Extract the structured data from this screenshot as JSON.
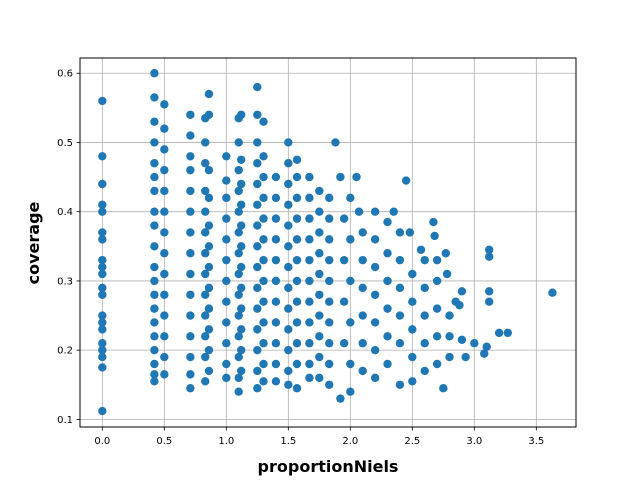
{
  "chart_data": {
    "type": "scatter",
    "xlabel": "proportionNiels",
    "ylabel": "coverage",
    "xlim": [
      -0.18,
      3.82
    ],
    "ylim": [
      0.089,
      0.622
    ],
    "xticks": [
      0.0,
      0.5,
      1.0,
      1.5,
      2.0,
      2.5,
      3.0,
      3.5
    ],
    "xtick_labels": [
      "0.0",
      "0.5",
      "1.0",
      "1.5",
      "2.0",
      "2.5",
      "3.0",
      "3.5"
    ],
    "yticks": [
      0.1,
      0.2,
      0.3,
      0.4,
      0.5,
      0.6
    ],
    "ytick_labels": [
      "0.1",
      "0.2",
      "0.3",
      "0.4",
      "0.5",
      "0.6"
    ],
    "grid": true,
    "marker_color": "#1f77b4",
    "series": [
      {
        "points": [
          [
            0.0,
            0.56
          ],
          [
            0.0,
            0.48
          ],
          [
            0.0,
            0.44
          ],
          [
            0.0,
            0.41
          ],
          [
            0.0,
            0.4
          ],
          [
            0.0,
            0.37
          ],
          [
            0.0,
            0.36
          ],
          [
            0.0,
            0.33
          ],
          [
            0.0,
            0.32
          ],
          [
            0.0,
            0.31
          ],
          [
            0.0,
            0.29
          ],
          [
            0.0,
            0.28
          ],
          [
            0.0,
            0.25
          ],
          [
            0.0,
            0.24
          ],
          [
            0.0,
            0.23
          ],
          [
            0.0,
            0.21
          ],
          [
            0.0,
            0.2
          ],
          [
            0.0,
            0.19
          ],
          [
            0.0,
            0.175
          ],
          [
            0.0,
            0.112
          ],
          [
            0.42,
            0.6
          ],
          [
            0.42,
            0.565
          ],
          [
            0.42,
            0.53
          ],
          [
            0.42,
            0.5
          ],
          [
            0.42,
            0.47
          ],
          [
            0.42,
            0.45
          ],
          [
            0.42,
            0.43
          ],
          [
            0.42,
            0.4
          ],
          [
            0.42,
            0.38
          ],
          [
            0.42,
            0.35
          ],
          [
            0.42,
            0.32
          ],
          [
            0.42,
            0.3
          ],
          [
            0.42,
            0.28
          ],
          [
            0.42,
            0.26
          ],
          [
            0.42,
            0.24
          ],
          [
            0.42,
            0.22
          ],
          [
            0.42,
            0.2
          ],
          [
            0.42,
            0.18
          ],
          [
            0.42,
            0.165
          ],
          [
            0.42,
            0.155
          ],
          [
            0.5,
            0.555
          ],
          [
            0.5,
            0.52
          ],
          [
            0.5,
            0.49
          ],
          [
            0.5,
            0.46
          ],
          [
            0.5,
            0.43
          ],
          [
            0.5,
            0.4
          ],
          [
            0.5,
            0.37
          ],
          [
            0.5,
            0.34
          ],
          [
            0.5,
            0.31
          ],
          [
            0.5,
            0.28
          ],
          [
            0.5,
            0.25
          ],
          [
            0.5,
            0.22
          ],
          [
            0.5,
            0.19
          ],
          [
            0.5,
            0.165
          ],
          [
            0.71,
            0.54
          ],
          [
            0.71,
            0.51
          ],
          [
            0.71,
            0.48
          ],
          [
            0.71,
            0.46
          ],
          [
            0.71,
            0.43
          ],
          [
            0.71,
            0.4
          ],
          [
            0.71,
            0.37
          ],
          [
            0.71,
            0.34
          ],
          [
            0.71,
            0.31
          ],
          [
            0.71,
            0.28
          ],
          [
            0.71,
            0.25
          ],
          [
            0.71,
            0.22
          ],
          [
            0.71,
            0.19
          ],
          [
            0.71,
            0.165
          ],
          [
            0.71,
            0.145
          ],
          [
            0.83,
            0.535
          ],
          [
            0.83,
            0.5
          ],
          [
            0.83,
            0.47
          ],
          [
            0.83,
            0.43
          ],
          [
            0.83,
            0.4
          ],
          [
            0.83,
            0.37
          ],
          [
            0.83,
            0.34
          ],
          [
            0.83,
            0.31
          ],
          [
            0.83,
            0.28
          ],
          [
            0.83,
            0.25
          ],
          [
            0.83,
            0.22
          ],
          [
            0.83,
            0.19
          ],
          [
            0.83,
            0.155
          ],
          [
            0.86,
            0.57
          ],
          [
            0.86,
            0.54
          ],
          [
            0.86,
            0.46
          ],
          [
            0.86,
            0.42
          ],
          [
            0.86,
            0.38
          ],
          [
            0.86,
            0.35
          ],
          [
            0.86,
            0.32
          ],
          [
            0.86,
            0.29
          ],
          [
            0.86,
            0.26
          ],
          [
            0.86,
            0.23
          ],
          [
            0.86,
            0.2
          ],
          [
            0.86,
            0.17
          ],
          [
            1.0,
            0.48
          ],
          [
            1.0,
            0.445
          ],
          [
            1.0,
            0.42
          ],
          [
            1.0,
            0.39
          ],
          [
            1.0,
            0.36
          ],
          [
            1.0,
            0.33
          ],
          [
            1.0,
            0.3
          ],
          [
            1.0,
            0.27
          ],
          [
            1.0,
            0.24
          ],
          [
            1.0,
            0.21
          ],
          [
            1.0,
            0.18
          ],
          [
            1.0,
            0.16
          ],
          [
            1.1,
            0.535
          ],
          [
            1.1,
            0.5
          ],
          [
            1.1,
            0.46
          ],
          [
            1.1,
            0.43
          ],
          [
            1.1,
            0.4
          ],
          [
            1.1,
            0.37
          ],
          [
            1.1,
            0.34
          ],
          [
            1.1,
            0.31
          ],
          [
            1.1,
            0.28
          ],
          [
            1.1,
            0.25
          ],
          [
            1.1,
            0.22
          ],
          [
            1.1,
            0.19
          ],
          [
            1.1,
            0.16
          ],
          [
            1.1,
            0.14
          ],
          [
            1.12,
            0.54
          ],
          [
            1.12,
            0.475
          ],
          [
            1.12,
            0.44
          ],
          [
            1.12,
            0.41
          ],
          [
            1.12,
            0.38
          ],
          [
            1.12,
            0.35
          ],
          [
            1.12,
            0.32
          ],
          [
            1.12,
            0.29
          ],
          [
            1.12,
            0.26
          ],
          [
            1.12,
            0.23
          ],
          [
            1.12,
            0.2
          ],
          [
            1.12,
            0.17
          ],
          [
            1.25,
            0.58
          ],
          [
            1.25,
            0.54
          ],
          [
            1.25,
            0.5
          ],
          [
            1.25,
            0.47
          ],
          [
            1.25,
            0.44
          ],
          [
            1.25,
            0.41
          ],
          [
            1.25,
            0.38
          ],
          [
            1.25,
            0.35
          ],
          [
            1.25,
            0.32
          ],
          [
            1.25,
            0.29
          ],
          [
            1.25,
            0.26
          ],
          [
            1.25,
            0.23
          ],
          [
            1.25,
            0.2
          ],
          [
            1.25,
            0.17
          ],
          [
            1.25,
            0.145
          ],
          [
            1.3,
            0.53
          ],
          [
            1.3,
            0.48
          ],
          [
            1.3,
            0.45
          ],
          [
            1.3,
            0.42
          ],
          [
            1.3,
            0.39
          ],
          [
            1.3,
            0.36
          ],
          [
            1.3,
            0.33
          ],
          [
            1.3,
            0.3
          ],
          [
            1.3,
            0.27
          ],
          [
            1.3,
            0.24
          ],
          [
            1.3,
            0.21
          ],
          [
            1.3,
            0.18
          ],
          [
            1.3,
            0.155
          ],
          [
            1.4,
            0.45
          ],
          [
            1.4,
            0.42
          ],
          [
            1.4,
            0.39
          ],
          [
            1.4,
            0.36
          ],
          [
            1.4,
            0.33
          ],
          [
            1.4,
            0.3
          ],
          [
            1.4,
            0.27
          ],
          [
            1.4,
            0.24
          ],
          [
            1.4,
            0.21
          ],
          [
            1.4,
            0.18
          ],
          [
            1.4,
            0.155
          ],
          [
            1.5,
            0.5
          ],
          [
            1.5,
            0.47
          ],
          [
            1.5,
            0.44
          ],
          [
            1.5,
            0.41
          ],
          [
            1.5,
            0.38
          ],
          [
            1.5,
            0.35
          ],
          [
            1.5,
            0.32
          ],
          [
            1.5,
            0.29
          ],
          [
            1.5,
            0.26
          ],
          [
            1.5,
            0.23
          ],
          [
            1.5,
            0.2
          ],
          [
            1.5,
            0.17
          ],
          [
            1.5,
            0.15
          ],
          [
            1.57,
            0.475
          ],
          [
            1.57,
            0.45
          ],
          [
            1.57,
            0.42
          ],
          [
            1.57,
            0.39
          ],
          [
            1.57,
            0.36
          ],
          [
            1.57,
            0.33
          ],
          [
            1.57,
            0.3
          ],
          [
            1.57,
            0.27
          ],
          [
            1.57,
            0.24
          ],
          [
            1.57,
            0.21
          ],
          [
            1.57,
            0.18
          ],
          [
            1.57,
            0.145
          ],
          [
            1.67,
            0.45
          ],
          [
            1.67,
            0.42
          ],
          [
            1.67,
            0.39
          ],
          [
            1.67,
            0.36
          ],
          [
            1.67,
            0.33
          ],
          [
            1.67,
            0.3
          ],
          [
            1.67,
            0.27
          ],
          [
            1.67,
            0.24
          ],
          [
            1.67,
            0.21
          ],
          [
            1.67,
            0.18
          ],
          [
            1.67,
            0.16
          ],
          [
            1.75,
            0.43
          ],
          [
            1.75,
            0.4
          ],
          [
            1.75,
            0.37
          ],
          [
            1.75,
            0.34
          ],
          [
            1.75,
            0.31
          ],
          [
            1.75,
            0.28
          ],
          [
            1.75,
            0.25
          ],
          [
            1.75,
            0.22
          ],
          [
            1.75,
            0.19
          ],
          [
            1.75,
            0.16
          ],
          [
            1.83,
            0.42
          ],
          [
            1.83,
            0.39
          ],
          [
            1.83,
            0.36
          ],
          [
            1.83,
            0.33
          ],
          [
            1.83,
            0.3
          ],
          [
            1.83,
            0.27
          ],
          [
            1.83,
            0.24
          ],
          [
            1.83,
            0.21
          ],
          [
            1.83,
            0.18
          ],
          [
            1.83,
            0.15
          ],
          [
            1.88,
            0.5
          ],
          [
            1.92,
            0.45
          ],
          [
            1.95,
            0.39
          ],
          [
            1.95,
            0.33
          ],
          [
            1.95,
            0.27
          ],
          [
            1.95,
            0.21
          ],
          [
            1.92,
            0.13
          ],
          [
            2.0,
            0.42
          ],
          [
            2.0,
            0.36
          ],
          [
            2.0,
            0.3
          ],
          [
            2.0,
            0.24
          ],
          [
            2.0,
            0.18
          ],
          [
            2.0,
            0.14
          ],
          [
            2.05,
            0.45
          ],
          [
            2.07,
            0.4
          ],
          [
            2.1,
            0.37
          ],
          [
            2.1,
            0.33
          ],
          [
            2.1,
            0.29
          ],
          [
            2.1,
            0.25
          ],
          [
            2.1,
            0.21
          ],
          [
            2.1,
            0.17
          ],
          [
            2.2,
            0.4
          ],
          [
            2.2,
            0.36
          ],
          [
            2.2,
            0.32
          ],
          [
            2.2,
            0.28
          ],
          [
            2.2,
            0.24
          ],
          [
            2.2,
            0.2
          ],
          [
            2.2,
            0.16
          ],
          [
            2.3,
            0.385
          ],
          [
            2.3,
            0.34
          ],
          [
            2.3,
            0.3
          ],
          [
            2.3,
            0.26
          ],
          [
            2.3,
            0.22
          ],
          [
            2.3,
            0.18
          ],
          [
            2.35,
            0.4
          ],
          [
            2.4,
            0.37
          ],
          [
            2.4,
            0.33
          ],
          [
            2.4,
            0.29
          ],
          [
            2.4,
            0.25
          ],
          [
            2.4,
            0.21
          ],
          [
            2.4,
            0.15
          ],
          [
            2.45,
            0.445
          ],
          [
            2.48,
            0.37
          ],
          [
            2.5,
            0.31
          ],
          [
            2.5,
            0.27
          ],
          [
            2.5,
            0.23
          ],
          [
            2.5,
            0.19
          ],
          [
            2.5,
            0.155
          ],
          [
            2.57,
            0.345
          ],
          [
            2.6,
            0.33
          ],
          [
            2.6,
            0.29
          ],
          [
            2.6,
            0.25
          ],
          [
            2.6,
            0.21
          ],
          [
            2.6,
            0.17
          ],
          [
            2.67,
            0.385
          ],
          [
            2.68,
            0.365
          ],
          [
            2.7,
            0.33
          ],
          [
            2.7,
            0.3
          ],
          [
            2.7,
            0.26
          ],
          [
            2.7,
            0.22
          ],
          [
            2.7,
            0.18
          ],
          [
            2.75,
            0.145
          ],
          [
            2.77,
            0.34
          ],
          [
            2.78,
            0.31
          ],
          [
            2.8,
            0.25
          ],
          [
            2.8,
            0.22
          ],
          [
            2.8,
            0.19
          ],
          [
            2.85,
            0.27
          ],
          [
            2.88,
            0.265
          ],
          [
            2.9,
            0.285
          ],
          [
            2.9,
            0.215
          ],
          [
            2.93,
            0.19
          ],
          [
            3.0,
            0.21
          ],
          [
            3.08,
            0.195
          ],
          [
            3.1,
            0.205
          ],
          [
            3.12,
            0.345
          ],
          [
            3.12,
            0.335
          ],
          [
            3.12,
            0.285
          ],
          [
            3.12,
            0.27
          ],
          [
            3.2,
            0.225
          ],
          [
            3.27,
            0.225
          ],
          [
            3.63,
            0.283
          ]
        ]
      }
    ]
  }
}
